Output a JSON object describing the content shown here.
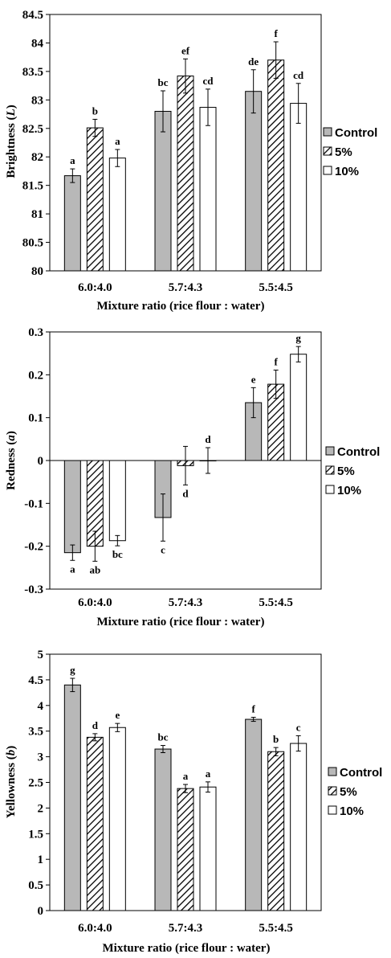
{
  "colors": {
    "control": "#b8b8b8",
    "pct5": "#ffffff",
    "pct10": "#ffffff",
    "axis": "#000000",
    "grid": "#d9d9d9"
  },
  "chart_data": [
    {
      "type": "bar",
      "ylabel_main": "Brightness (",
      "ylabel_var": "L",
      "ylabel_end": ")",
      "xlabel": "Mixture ratio (rice flour : water)",
      "categories": [
        "6.0:4.0",
        "5.7:4.3",
        "5.5:4.5"
      ],
      "ylim": [
        80,
        84.5
      ],
      "yticks": [
        "80",
        "80.5",
        "81",
        "81.5",
        "82",
        "82.5",
        "83",
        "83.5",
        "84",
        "84.5"
      ],
      "ytick_values": [
        80,
        80.5,
        81,
        81.5,
        82,
        82.5,
        83,
        83.5,
        84,
        84.5
      ],
      "legend": [
        "Control",
        "5%",
        "10%"
      ],
      "series": [
        {
          "name": "Control",
          "values": [
            81.67,
            82.8,
            83.15
          ],
          "errors": [
            0.12,
            0.36,
            0.38
          ],
          "labels": [
            "a",
            "bc",
            "de"
          ]
        },
        {
          "name": "5%",
          "values": [
            82.51,
            83.42,
            83.7
          ],
          "errors": [
            0.15,
            0.3,
            0.32
          ],
          "labels": [
            "b",
            "ef",
            "f"
          ]
        },
        {
          "name": "10%",
          "values": [
            81.98,
            82.87,
            82.94
          ],
          "errors": [
            0.15,
            0.32,
            0.35
          ],
          "labels": [
            "a",
            "cd",
            "cd"
          ]
        }
      ]
    },
    {
      "type": "bar",
      "ylabel_main": "Redness (",
      "ylabel_var": "a",
      "ylabel_end": ")",
      "xlabel": "Mixture ratio (rice flour : water)",
      "categories": [
        "6.0:4.0",
        "5.7:4.3",
        "5.5:4.5"
      ],
      "ylim": [
        -0.3,
        0.3
      ],
      "yticks": [
        "-0.3",
        "-0.2",
        "-0.1",
        "0",
        "0.1",
        "0.2",
        "0.3"
      ],
      "ytick_values": [
        -0.3,
        -0.2,
        -0.1,
        0,
        0.1,
        0.2,
        0.3
      ],
      "legend": [
        "Control",
        "5%",
        "10%"
      ],
      "series": [
        {
          "name": "Control",
          "values": [
            -0.215,
            -0.133,
            0.135
          ],
          "errors": [
            0.018,
            0.055,
            0.035
          ],
          "labels": [
            "a",
            "c",
            "e"
          ]
        },
        {
          "name": "5%",
          "values": [
            -0.2,
            -0.012,
            0.178
          ],
          "errors": [
            0.035,
            0.045,
            0.033
          ],
          "labels": [
            "ab",
            "d",
            "f"
          ]
        },
        {
          "name": "10%",
          "values": [
            -0.187,
            0.0,
            0.248
          ],
          "errors": [
            0.012,
            0.03,
            0.018
          ],
          "labels": [
            "bc",
            "d",
            "g"
          ]
        }
      ]
    },
    {
      "type": "bar",
      "ylabel_main": "Yellowness (",
      "ylabel_var": "b",
      "ylabel_end": ")",
      "xlabel": "Mixture ratio (rice flour : water)",
      "categories": [
        "6.0:4.0",
        "5.7:4.3",
        "5.5:4.5"
      ],
      "ylim": [
        0,
        5
      ],
      "yticks": [
        "0",
        "0.5",
        "1",
        "1.5",
        "2",
        "2.5",
        "3",
        "3.5",
        "4",
        "4.5",
        "5"
      ],
      "ytick_values": [
        0,
        0.5,
        1,
        1.5,
        2,
        2.5,
        3,
        3.5,
        4,
        4.5,
        5
      ],
      "legend": [
        "Control",
        "5%",
        "10%"
      ],
      "series": [
        {
          "name": "Control",
          "values": [
            4.4,
            3.15,
            3.73
          ],
          "errors": [
            0.13,
            0.07,
            0.04
          ],
          "labels": [
            "g",
            "bc",
            "f"
          ]
        },
        {
          "name": "5%",
          "values": [
            3.38,
            2.38,
            3.1
          ],
          "errors": [
            0.07,
            0.08,
            0.08
          ],
          "labels": [
            "d",
            "a",
            "b"
          ]
        },
        {
          "name": "10%",
          "values": [
            3.57,
            2.41,
            3.26
          ],
          "errors": [
            0.08,
            0.1,
            0.15
          ],
          "labels": [
            "e",
            "a",
            "c"
          ]
        }
      ]
    }
  ]
}
